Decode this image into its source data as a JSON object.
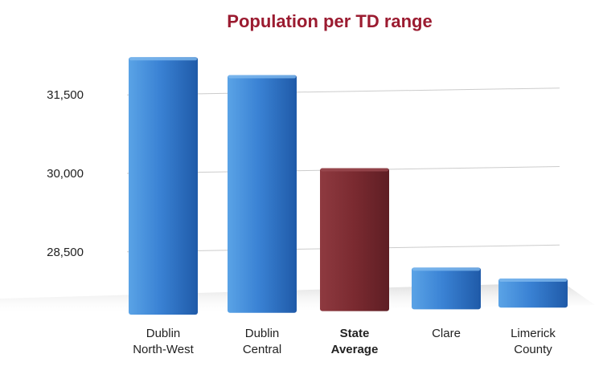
{
  "chart_data": {
    "type": "bar",
    "title": "Population per TD range",
    "categories": [
      {
        "lines": [
          "Dublin",
          "North-West"
        ],
        "bold": false
      },
      {
        "lines": [
          "Dublin",
          "Central"
        ],
        "bold": false
      },
      {
        "lines": [
          "State",
          "Average"
        ],
        "bold": true
      },
      {
        "lines": [
          "Clare"
        ],
        "bold": false
      },
      {
        "lines": [
          "Limerick",
          "County"
        ],
        "bold": false
      }
    ],
    "values": [
      32220,
      31880,
      30100,
      28200,
      27990
    ],
    "y_ticks": [
      {
        "value": 31500,
        "label": "31,500"
      },
      {
        "value": 30000,
        "label": "30,000"
      },
      {
        "value": 28500,
        "label": "28,500"
      }
    ],
    "ylim": [
      27300,
      32700
    ],
    "grid": true,
    "xlabel": "",
    "ylabel": "",
    "colors": {
      "title": "#9b1b30",
      "bar": "#2f6fc0",
      "bar_highlight": "#7a2a30",
      "grid": "#cccccc"
    },
    "highlight_index": 2
  }
}
